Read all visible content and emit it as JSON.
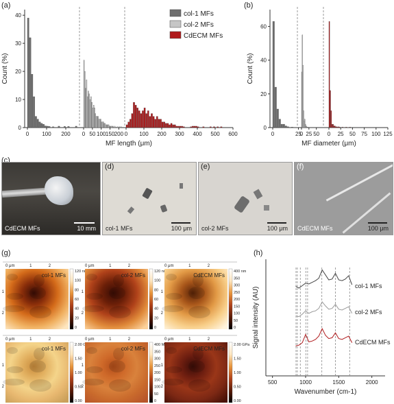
{
  "panels": {
    "a": "(a)",
    "b": "(b)",
    "c": "(c)",
    "d": "(d)",
    "e": "(e)",
    "f": "(f)",
    "g": "(g)",
    "h": "(h)"
  },
  "legend": [
    "col-1 MFs",
    "col-2 MFs",
    "CdECM MFs"
  ],
  "colors": {
    "col1": "#6e6e6e",
    "col2": "#c6c6c6",
    "cdecm": "#b0191b"
  },
  "chart_data": [
    {
      "type": "bar",
      "panel": "a",
      "xlabel": "MF length (μm)",
      "ylabel": "Count (%)",
      "ylim": [
        0,
        42
      ],
      "yticks": [
        0,
        10,
        20,
        30,
        40
      ],
      "series": [
        {
          "name": "col-1 MFs",
          "xticks": [
            "0",
            "100",
            "200"
          ],
          "x": [
            0,
            10,
            20,
            30,
            40,
            50,
            60,
            70,
            80,
            90,
            100,
            110,
            120,
            130,
            140,
            150,
            160,
            170,
            180,
            190,
            200,
            210,
            220,
            230,
            240,
            250
          ],
          "values": [
            39,
            32,
            19,
            11,
            4,
            3,
            2,
            1.5,
            1.2,
            0.6,
            0.5,
            0.4,
            0,
            0.3,
            0,
            0,
            0.5,
            0,
            0,
            0.4,
            0,
            0.4,
            0,
            0,
            0,
            0.5
          ]
        },
        {
          "name": "col-2 MFs",
          "xticks": [
            "0",
            "50",
            "100",
            "150",
            "200"
          ],
          "x": [
            0,
            5,
            10,
            15,
            20,
            25,
            30,
            35,
            40,
            45,
            50,
            55,
            60,
            65,
            70,
            75,
            80,
            85,
            90,
            95,
            100,
            105,
            110,
            115,
            120,
            125,
            130,
            135,
            140,
            145,
            150,
            155,
            160,
            165,
            170,
            175,
            180,
            185,
            190,
            195,
            200,
            205,
            210
          ],
          "values": [
            24,
            20,
            14,
            17,
            11,
            13,
            12,
            10,
            11,
            9,
            7,
            8,
            7,
            5,
            4,
            4,
            4,
            3,
            3,
            3,
            2,
            2,
            2,
            1.5,
            1.5,
            1,
            1,
            1,
            1,
            0.5,
            0.5,
            0.5,
            0.5,
            0.5,
            0,
            0.5,
            0,
            0,
            0.3,
            0,
            0.3,
            0,
            0.3
          ]
        },
        {
          "name": "CdECM MFs",
          "xticks": [
            "0",
            "100",
            "200",
            "300",
            "400",
            "500",
            "600"
          ],
          "x": [
            0,
            10,
            20,
            30,
            40,
            50,
            60,
            70,
            80,
            90,
            100,
            110,
            120,
            130,
            140,
            150,
            160,
            170,
            180,
            190,
            200,
            210,
            220,
            230,
            240,
            250,
            260,
            270,
            280,
            290,
            300,
            310,
            320,
            330,
            340,
            350,
            360,
            370,
            380,
            390,
            400,
            410,
            420,
            430,
            440,
            450,
            460,
            470,
            480,
            490,
            500,
            510,
            520,
            530,
            540
          ],
          "values": [
            1,
            2,
            3,
            5,
            9,
            8,
            7,
            6,
            5,
            6,
            7,
            5,
            6,
            4,
            5,
            4,
            3,
            4,
            3,
            3,
            2,
            2,
            1.5,
            1.5,
            1,
            1.5,
            1,
            1,
            0.5,
            0.5,
            0.5,
            0.5,
            0.3,
            0,
            0,
            0,
            0.3,
            0.5,
            0.5,
            0.5,
            0.3,
            0,
            0,
            0.3,
            0,
            0,
            0,
            0.3,
            0,
            0.3,
            0,
            0.3,
            0,
            0.3,
            0
          ]
        }
      ]
    },
    {
      "type": "bar",
      "panel": "b",
      "xlabel": "MF diameter (μm)",
      "ylabel": "Count (%)",
      "ylim": [
        0,
        70
      ],
      "yticks": [
        0,
        20,
        40,
        60
      ],
      "series": [
        {
          "name": "col-1 MFs",
          "xticks": [
            "0",
            "25"
          ],
          "x": [
            0,
            2,
            4,
            6,
            8,
            10,
            12,
            14,
            16,
            18
          ],
          "values": [
            63,
            24,
            11,
            5,
            2,
            2,
            1,
            0.5,
            0,
            0.3
          ]
        },
        {
          "name": "col-2 MFs",
          "xticks": [
            "0",
            "25",
            "50"
          ],
          "x": [
            0,
            2,
            4,
            6,
            8,
            10,
            12,
            14,
            16,
            18,
            20
          ],
          "values": [
            33,
            55,
            37,
            10,
            4,
            5,
            2,
            1,
            0.5,
            0.3,
            0.3
          ]
        },
        {
          "name": "CdECM MFs",
          "xticks": [
            "0",
            "25",
            "50",
            "75",
            "100",
            "125"
          ],
          "x": [
            0,
            2,
            4,
            6,
            8,
            10,
            12,
            14,
            16,
            18,
            20,
            22,
            24,
            26,
            28,
            30,
            32,
            34,
            36,
            38,
            40,
            42,
            44,
            46,
            48,
            50,
            52,
            54,
            56,
            58,
            60,
            62
          ],
          "values": [
            63,
            22,
            10,
            2,
            2,
            1,
            1,
            0.5,
            0.5,
            0.3,
            0.5,
            0.3,
            0,
            0,
            0.3,
            0,
            0,
            0,
            0.3,
            0,
            0,
            0,
            0.3,
            0,
            0,
            0,
            0,
            0,
            0,
            0,
            0,
            0
          ]
        }
      ]
    },
    {
      "type": "line",
      "panel": "h",
      "xlabel": "Wavenumber (cm-1)",
      "ylabel": "Signal intensity (AU)",
      "xticks": [
        500,
        1000,
        1500,
        2000
      ],
      "xlim": [
        400,
        2200
      ],
      "marker_lines": [
        855,
        875,
        920,
        1003,
        1030,
        1245,
        1450,
        1665
      ],
      "series": [
        {
          "name": "col-1 MFs",
          "x": [
            850,
            900,
            950,
            1000,
            1050,
            1100,
            1150,
            1200,
            1250,
            1300,
            1350,
            1400,
            1450,
            1500,
            1550,
            1600,
            1650,
            1700
          ],
          "y": [
            0.6,
            0.5,
            0.65,
            0.8,
            0.75,
            0.85,
            0.95,
            1.1,
            1.6,
            1.3,
            1.0,
            1.05,
            1.4,
            1.0,
            0.95,
            1.05,
            1.25,
            0.7
          ]
        },
        {
          "name": "col-2 MFs",
          "x": [
            850,
            900,
            950,
            1000,
            1050,
            1100,
            1150,
            1200,
            1250,
            1300,
            1350,
            1400,
            1450,
            1500,
            1550,
            1600,
            1650,
            1700
          ],
          "y": [
            0.4,
            0.35,
            0.5,
            0.7,
            0.55,
            0.65,
            0.7,
            0.85,
            1.25,
            1.0,
            0.8,
            0.85,
            1.1,
            0.8,
            0.75,
            0.85,
            0.95,
            0.55
          ]
        },
        {
          "name": "CdECM MFs",
          "x": [
            850,
            900,
            950,
            1000,
            1050,
            1100,
            1150,
            1200,
            1250,
            1300,
            1350,
            1400,
            1450,
            1500,
            1550,
            1600,
            1650,
            1700
          ],
          "y": [
            0.4,
            0.45,
            0.6,
            1.1,
            0.65,
            0.7,
            0.8,
            1.0,
            1.45,
            1.05,
            0.85,
            0.9,
            1.2,
            0.85,
            0.8,
            0.9,
            1.0,
            0.6
          ]
        }
      ]
    }
  ],
  "photos": [
    {
      "panel": "c",
      "caption": "CdECM MFs",
      "scalebar": "10 mm"
    },
    {
      "panel": "d",
      "caption": "col-1 MFs",
      "scalebar": "100 μm"
    },
    {
      "panel": "e",
      "caption": "col-2 MFs",
      "scalebar": "100 μm"
    },
    {
      "panel": "f",
      "caption": "CdECM MFs",
      "scalebar": "100 μm"
    }
  ],
  "afm": {
    "axis_unit": "0 μm",
    "axis_ticks": [
      "1",
      "2"
    ],
    "top": [
      {
        "caption": "col-1 MFs",
        "max": "120 nm",
        "ticks": [
          "100",
          "80",
          "60",
          "40",
          "20",
          "0"
        ]
      },
      {
        "caption": "col-2 MFs",
        "max": "120 nm",
        "ticks": [
          "100",
          "80",
          "60",
          "40",
          "20",
          "0"
        ]
      },
      {
        "caption": "CdECM MFs",
        "max": "400 nm",
        "ticks": [
          "350",
          "300",
          "250",
          "200",
          "150",
          "100",
          "50",
          "0"
        ]
      }
    ],
    "bottom": [
      {
        "caption": "col-1 MFs",
        "max": "2.00 GPa",
        "ticks": [
          "1.50",
          "1.00",
          "0.50",
          "0.00"
        ]
      },
      {
        "caption": "col-2 MFs",
        "max": "400 MPa",
        "ticks": [
          "350",
          "300",
          "250",
          "200",
          "150",
          "100",
          "50",
          "0"
        ]
      },
      {
        "caption": "CdECM MFs",
        "max": "2.00 GPa",
        "ticks": [
          "1.50",
          "1.00",
          "0.50",
          "0.00"
        ]
      }
    ]
  }
}
